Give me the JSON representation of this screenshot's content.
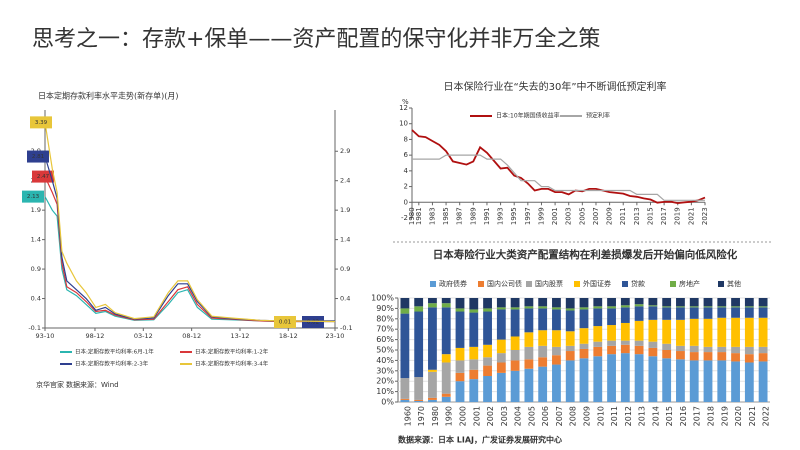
{
  "title": "思考之一：存款+保单——资产配置的保守化并非万全之策",
  "chart_data": [
    {
      "type": "line",
      "title": "日本定期存款利率水平走势(新存单)(月)",
      "x": [
        1993.75,
        1994.5,
        1995,
        1995.5,
        1996,
        1997,
        1998,
        1999,
        2000,
        2001,
        2003,
        2005,
        2006.5,
        2007.5,
        2008.5,
        2009.5,
        2011,
        2013,
        2016,
        2018,
        2023.75
      ],
      "xlim": [
        1993.75,
        2023.75
      ],
      "xticks": [
        {
          "value": 1993.75,
          "label": "93-10"
        },
        {
          "value": 1998.92,
          "label": "98-12"
        },
        {
          "value": 2003.92,
          "label": "03-12"
        },
        {
          "value": 2008.92,
          "label": "08-12"
        },
        {
          "value": 2013.92,
          "label": "13-12"
        },
        {
          "value": 2018.92,
          "label": "18-12"
        },
        {
          "value": 2023.75,
          "label": "23-10"
        }
      ],
      "ylim": [
        -0.1,
        3.6
      ],
      "yticks": [
        -0.1,
        0.4,
        0.9,
        1.4,
        1.9,
        2.4,
        2.9
      ],
      "series": [
        {
          "name": "日本:定期存款平均利率:6月-1年",
          "color": "#2bb5b0",
          "values": [
            2.13,
            1.9,
            1.8,
            0.9,
            0.55,
            0.45,
            0.3,
            0.15,
            0.18,
            0.1,
            0.03,
            0.04,
            0.3,
            0.5,
            0.55,
            0.25,
            0.05,
            0.04,
            0.02,
            0.01,
            0.01
          ]
        },
        {
          "name": "日本:定期存款平均利率:1-2年",
          "color": "#d9383a",
          "values": [
            2.47,
            2.2,
            2.0,
            1.0,
            0.6,
            0.5,
            0.35,
            0.18,
            0.2,
            0.12,
            0.04,
            0.05,
            0.35,
            0.55,
            0.6,
            0.3,
            0.07,
            0.05,
            0.02,
            0.01,
            0.01
          ]
        },
        {
          "name": "日本:定期存款平均利率:2-3年",
          "color": "#2e3f8f",
          "values": [
            2.81,
            2.4,
            2.1,
            1.1,
            0.7,
            0.55,
            0.4,
            0.2,
            0.25,
            0.14,
            0.05,
            0.07,
            0.45,
            0.65,
            0.65,
            0.35,
            0.09,
            0.06,
            0.03,
            0.02,
            0.02
          ]
        },
        {
          "name": "日本:定期存款平均利率:3-4年",
          "color": "#e8c63a",
          "values": [
            3.39,
            2.6,
            2.2,
            1.2,
            1.0,
            0.7,
            0.5,
            0.25,
            0.3,
            0.16,
            0.06,
            0.09,
            0.5,
            0.7,
            0.7,
            0.38,
            0.1,
            0.07,
            0.03,
            0.02,
            0.01
          ]
        }
      ],
      "source": "数据来源：Wind",
      "logo": "京华官家"
    },
    {
      "type": "line",
      "title": "日本保险行业在“失去的30年”中不断调低预定利率",
      "ylabel": "%",
      "x": [
        1980,
        1981,
        1982,
        1983,
        1984,
        1985,
        1986,
        1987,
        1988,
        1989,
        1990,
        1991,
        1992,
        1993,
        1994,
        1995,
        1996,
        1997,
        1998,
        1999,
        2000,
        2001,
        2002,
        2003,
        2004,
        2005,
        2006,
        2007,
        2008,
        2009,
        2010,
        2011,
        2012,
        2013,
        2014,
        2015,
        2016,
        2017,
        2018,
        2019,
        2020,
        2021,
        2022,
        2023
      ],
      "xlim": [
        1980,
        2023
      ],
      "xticks": [
        1980,
        1981,
        1983,
        1985,
        1987,
        1989,
        1991,
        1993,
        1995,
        1997,
        1999,
        2001,
        2003,
        2005,
        2007,
        2009,
        2011,
        2013,
        2015,
        2017,
        2019,
        2021,
        2023
      ],
      "ylim": [
        -2,
        12
      ],
      "yticks": [
        -2,
        0,
        2,
        4,
        6,
        8,
        10,
        12
      ],
      "series": [
        {
          "name": "日本:10年期国债收益率",
          "color": "#b01010",
          "values": [
            9.2,
            8.4,
            8.3,
            7.8,
            7.3,
            6.5,
            5.2,
            5.0,
            4.8,
            5.2,
            7.0,
            6.3,
            5.3,
            4.3,
            4.4,
            3.4,
            3.1,
            2.4,
            1.5,
            1.7,
            1.7,
            1.3,
            1.3,
            1.0,
            1.5,
            1.4,
            1.7,
            1.7,
            1.5,
            1.3,
            1.2,
            1.1,
            0.8,
            0.7,
            0.5,
            0.35,
            -0.05,
            0.05,
            0.07,
            -0.1,
            0.0,
            0.07,
            0.25,
            0.6
          ]
        },
        {
          "name": "预定利率",
          "color": "#a6a6a6",
          "values": [
            5.5,
            5.5,
            5.5,
            5.5,
            5.5,
            6,
            6,
            6,
            6,
            6,
            6,
            5.5,
            5.5,
            5.5,
            4.75,
            3.75,
            2.75,
            2.75,
            2.75,
            2,
            2,
            1.5,
            1.5,
            1.5,
            1.5,
            1.5,
            1.5,
            1.5,
            1.5,
            1.5,
            1.5,
            1.5,
            1.5,
            1,
            1,
            1,
            1,
            0.25,
            0.25,
            0.25,
            0.25,
            0.25,
            0.25,
            0.25
          ]
        }
      ]
    },
    {
      "type": "stacked_bar",
      "title": "日本寿险行业大类资产配置结构在利差损爆发后开始偏向低风险化",
      "categories": [
        "1960",
        "1970",
        "1980",
        "1990",
        "2000",
        "2001",
        "2002",
        "2003",
        "2004",
        "2005",
        "2006",
        "2007",
        "2008",
        "2009",
        "2010",
        "2011",
        "2012",
        "2013",
        "2014",
        "2015",
        "2016",
        "2017",
        "2018",
        "2019",
        "2020",
        "2021",
        "2022"
      ],
      "ylim": [
        0,
        100
      ],
      "yticks": [
        {
          "value": 0,
          "label": "0%"
        },
        {
          "value": 10,
          "label": "10%"
        },
        {
          "value": 20,
          "label": "20%"
        },
        {
          "value": 30,
          "label": "30%"
        },
        {
          "value": 40,
          "label": "40%"
        },
        {
          "value": 50,
          "label": "50%"
        },
        {
          "value": 60,
          "label": "60%"
        },
        {
          "value": 70,
          "label": "70%"
        },
        {
          "value": 80,
          "label": "80%"
        },
        {
          "value": 90,
          "label": "90%"
        },
        {
          "value": 100,
          "label": "100%"
        }
      ],
      "series": [
        {
          "name": "政府债券",
          "color": "#5b9bd5",
          "values": [
            2,
            1,
            2,
            5,
            20,
            22,
            25,
            28,
            30,
            32,
            34,
            36,
            40,
            42,
            44,
            46,
            47,
            46,
            44,
            42,
            41,
            40,
            40,
            40,
            39,
            38,
            39
          ]
        },
        {
          "name": "国内公司债",
          "color": "#ed7d31",
          "values": [
            1,
            1,
            2,
            3,
            8,
            9,
            10,
            10,
            10,
            9,
            9,
            9,
            9,
            9,
            9,
            8,
            8,
            8,
            8,
            8,
            8,
            8,
            8,
            8,
            8,
            8,
            8
          ]
        },
        {
          "name": "国内股票",
          "color": "#a5a5a5",
          "values": [
            20,
            22,
            25,
            30,
            12,
            10,
            8,
            9,
            10,
            12,
            11,
            8,
            5,
            5,
            5,
            5,
            4,
            5,
            6,
            6,
            5,
            6,
            5,
            5,
            6,
            7,
            6
          ]
        },
        {
          "name": "外国证券",
          "color": "#ffc000",
          "values": [
            0,
            0,
            2,
            8,
            12,
            12,
            12,
            13,
            13,
            14,
            15,
            16,
            14,
            15,
            15,
            15,
            17,
            19,
            21,
            23,
            25,
            26,
            27,
            28,
            28,
            28,
            28
          ]
        },
        {
          "name": "贷款",
          "color": "#2f5597",
          "values": [
            62,
            63,
            60,
            45,
            35,
            33,
            32,
            29,
            26,
            23,
            21,
            20,
            20,
            18,
            17,
            16,
            15,
            14,
            13,
            12,
            12,
            11,
            11,
            10,
            10,
            10,
            10
          ]
        },
        {
          "name": "房地产",
          "color": "#70ad47",
          "values": [
            5,
            5,
            4,
            4,
            3,
            3,
            3,
            2,
            2,
            2,
            2,
            2,
            2,
            2,
            2,
            2,
            2,
            2,
            1,
            1,
            1,
            1,
            1,
            1,
            1,
            1,
            1
          ]
        },
        {
          "name": "其他",
          "color": "#1f3864",
          "values": [
            10,
            8,
            5,
            5,
            10,
            11,
            10,
            9,
            9,
            8,
            8,
            9,
            10,
            9,
            8,
            8,
            7,
            6,
            7,
            8,
            8,
            8,
            8,
            8,
            8,
            8,
            8
          ]
        }
      ],
      "source": "数据来源：日本 LIAJ，广发证券发展研究中心"
    }
  ]
}
